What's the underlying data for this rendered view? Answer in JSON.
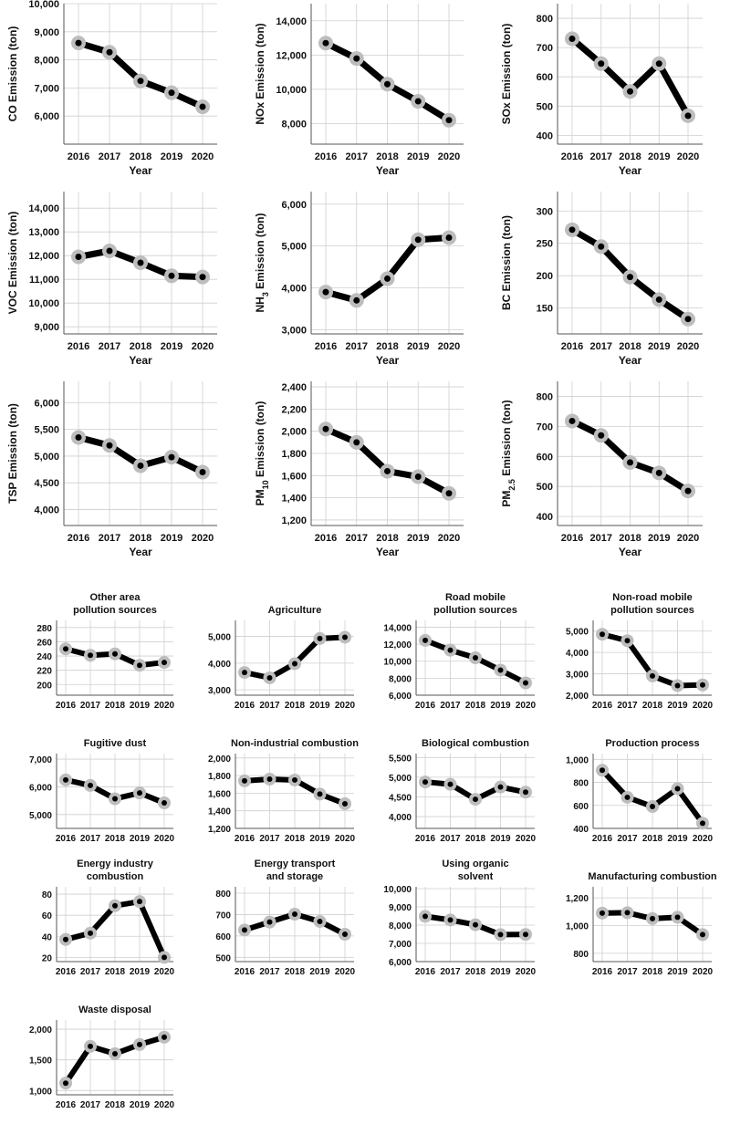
{
  "figure": {
    "colors": {
      "line": "#000000",
      "marker": "#bdbdbd",
      "grid": "#cfcfcf",
      "axis": "#555555"
    }
  },
  "chart_data": [
    {
      "type": "line",
      "ylabel": "CO Emission (ton)",
      "ylabel_sub": "",
      "ylabel_post": "",
      "xlabel": "Year",
      "categories": [
        "2016",
        "2017",
        "2018",
        "2019",
        "2020"
      ],
      "values": [
        8600,
        8270,
        7250,
        6830,
        6330
      ],
      "ylim": [
        5000,
        10000
      ],
      "yticks": [
        6000,
        7000,
        8000,
        9000,
        10000
      ],
      "ytick_labels": [
        "6,000",
        "7,000",
        "8,000",
        "9,000",
        "10,000"
      ]
    },
    {
      "type": "line",
      "ylabel": "NOx Emission (ton)",
      "ylabel_sub": "",
      "ylabel_post": "",
      "xlabel": "Year",
      "categories": [
        "2016",
        "2017",
        "2018",
        "2019",
        "2020"
      ],
      "values": [
        12700,
        11800,
        10300,
        9300,
        8200
      ],
      "ylim": [
        6800,
        15000
      ],
      "yticks": [
        8000,
        10000,
        12000,
        14000
      ],
      "ytick_labels": [
        "8,000",
        "10,000",
        "12,000",
        "14,000"
      ]
    },
    {
      "type": "line",
      "ylabel": "SOx Emission (ton)",
      "ylabel_sub": "",
      "ylabel_post": "",
      "xlabel": "Year",
      "categories": [
        "2016",
        "2017",
        "2018",
        "2019",
        "2020"
      ],
      "values": [
        730,
        645,
        550,
        645,
        467
      ],
      "ylim": [
        370,
        850
      ],
      "yticks": [
        400,
        500,
        600,
        700,
        800
      ],
      "ytick_labels": [
        "400",
        "500",
        "600",
        "700",
        "800"
      ]
    },
    {
      "type": "line",
      "ylabel": "VOC Emission (ton)",
      "ylabel_sub": "",
      "ylabel_post": "",
      "xlabel": "Year",
      "categories": [
        "2016",
        "2017",
        "2018",
        "2019",
        "2020"
      ],
      "values": [
        11950,
        12200,
        11700,
        11150,
        11100
      ],
      "ylim": [
        8700,
        14700
      ],
      "yticks": [
        9000,
        10000,
        11000,
        12000,
        13000,
        14000
      ],
      "ytick_labels": [
        "9,000",
        "10,000",
        "11,000",
        "12,000",
        "13,000",
        "14,000"
      ]
    },
    {
      "type": "line",
      "ylabel": "NH",
      "ylabel_sub": "3",
      "ylabel_post": " Emission (ton)",
      "xlabel": "Year",
      "categories": [
        "2016",
        "2017",
        "2018",
        "2019",
        "2020"
      ],
      "values": [
        3900,
        3700,
        4220,
        5150,
        5200
      ],
      "ylim": [
        2900,
        6300
      ],
      "yticks": [
        3000,
        4000,
        5000,
        6000
      ],
      "ytick_labels": [
        "3,000",
        "4,000",
        "5,000",
        "6,000"
      ]
    },
    {
      "type": "line",
      "ylabel": "BC Emission (ton)",
      "ylabel_sub": "",
      "ylabel_post": "",
      "xlabel": "Year",
      "categories": [
        "2016",
        "2017",
        "2018",
        "2019",
        "2020"
      ],
      "values": [
        271,
        245,
        198,
        163,
        133
      ],
      "ylim": [
        110,
        330
      ],
      "yticks": [
        150,
        200,
        250,
        300
      ],
      "ytick_labels": [
        "150",
        "200",
        "250",
        "300"
      ]
    },
    {
      "type": "line",
      "ylabel": "TSP Emission (ton)",
      "ylabel_sub": "",
      "ylabel_post": "",
      "xlabel": "Year",
      "categories": [
        "2016",
        "2017",
        "2018",
        "2019",
        "2020"
      ],
      "values": [
        5350,
        5200,
        4820,
        4980,
        4700
      ],
      "ylim": [
        3700,
        6400
      ],
      "yticks": [
        4000,
        4500,
        5000,
        5500,
        6000
      ],
      "ytick_labels": [
        "4,000",
        "4,500",
        "5,000",
        "5,500",
        "6,000"
      ]
    },
    {
      "type": "line",
      "ylabel": "PM",
      "ylabel_sub": "10",
      "ylabel_post": " Emission (ton)",
      "xlabel": "Year",
      "categories": [
        "2016",
        "2017",
        "2018",
        "2019",
        "2020"
      ],
      "values": [
        2020,
        1900,
        1640,
        1590,
        1440
      ],
      "ylim": [
        1150,
        2450
      ],
      "yticks": [
        1200,
        1400,
        1600,
        1800,
        2000,
        2200,
        2400
      ],
      "ytick_labels": [
        "1,200",
        "1,400",
        "1,600",
        "1,800",
        "2,000",
        "2,200",
        "2,400"
      ]
    },
    {
      "type": "line",
      "ylabel": "PM",
      "ylabel_sub": "2.5",
      "ylabel_post": " Emission (ton)",
      "xlabel": "Year",
      "categories": [
        "2016",
        "2017",
        "2018",
        "2019",
        "2020"
      ],
      "values": [
        718,
        670,
        580,
        545,
        485
      ],
      "ylim": [
        370,
        850
      ],
      "yticks": [
        400,
        500,
        600,
        700,
        800
      ],
      "ytick_labels": [
        "400",
        "500",
        "600",
        "700",
        "800"
      ]
    },
    {
      "type": "line",
      "title": [
        "Other area",
        "pollution sources"
      ],
      "categories": [
        "2016",
        "2017",
        "2018",
        "2019",
        "2020"
      ],
      "values": [
        250,
        241,
        243,
        227,
        231
      ],
      "ylim": [
        185,
        290
      ],
      "yticks": [
        200,
        220,
        240,
        260,
        280
      ],
      "ytick_labels": [
        "200",
        "220",
        "240",
        "260",
        "280"
      ]
    },
    {
      "type": "line",
      "title": [
        "Agriculture"
      ],
      "categories": [
        "2016",
        "2017",
        "2018",
        "2019",
        "2020"
      ],
      "values": [
        3650,
        3450,
        3980,
        4920,
        4970
      ],
      "ylim": [
        2800,
        5600
      ],
      "yticks": [
        3000,
        4000,
        5000
      ],
      "ytick_labels": [
        "3,000",
        "4,000",
        "5,000"
      ]
    },
    {
      "type": "line",
      "title": [
        "Road mobile",
        "pollution sources"
      ],
      "categories": [
        "2016",
        "2017",
        "2018",
        "2019",
        "2020"
      ],
      "values": [
        12450,
        11300,
        10400,
        8950,
        7450
      ],
      "ylim": [
        6000,
        14800
      ],
      "yticks": [
        6000,
        8000,
        10000,
        12000,
        14000
      ],
      "ytick_labels": [
        "6,000",
        "8,000",
        "10,000",
        "12,000",
        "14,000"
      ]
    },
    {
      "type": "line",
      "title": [
        "Non-road mobile",
        "pollution sources"
      ],
      "categories": [
        "2016",
        "2017",
        "2018",
        "2019",
        "2020"
      ],
      "values": [
        4850,
        4550,
        2900,
        2450,
        2480
      ],
      "ylim": [
        2000,
        5500
      ],
      "yticks": [
        2000,
        3000,
        4000,
        5000
      ],
      "ytick_labels": [
        "2,000",
        "3,000",
        "4,000",
        "5,000"
      ]
    },
    {
      "type": "line",
      "title": [
        "Fugitive dust"
      ],
      "categories": [
        "2016",
        "2017",
        "2018",
        "2019",
        "2020"
      ],
      "values": [
        6250,
        6050,
        5570,
        5780,
        5420
      ],
      "ylim": [
        4500,
        7200
      ],
      "yticks": [
        5000,
        6000,
        7000
      ],
      "ytick_labels": [
        "5,000",
        "6,000",
        "7,000"
      ]
    },
    {
      "type": "line",
      "title": [
        "Non-industrial combustion"
      ],
      "categories": [
        "2016",
        "2017",
        "2018",
        "2019",
        "2020"
      ],
      "values": [
        1740,
        1760,
        1750,
        1590,
        1480
      ],
      "ylim": [
        1200,
        2050
      ],
      "yticks": [
        1200,
        1400,
        1600,
        1800,
        2000
      ],
      "ytick_labels": [
        "1,200",
        "1,400",
        "1,600",
        "1,800",
        "2,000"
      ]
    },
    {
      "type": "line",
      "title": [
        "Biological combustion"
      ],
      "categories": [
        "2016",
        "2017",
        "2018",
        "2019",
        "2020"
      ],
      "values": [
        4880,
        4820,
        4440,
        4750,
        4620
      ],
      "ylim": [
        3700,
        5600
      ],
      "yticks": [
        4000,
        4500,
        5000,
        5500
      ],
      "ytick_labels": [
        "4,000",
        "4,500",
        "5,000",
        "5,500"
      ]
    },
    {
      "type": "line",
      "title": [
        "Production process"
      ],
      "categories": [
        "2016",
        "2017",
        "2018",
        "2019",
        "2020"
      ],
      "values": [
        905,
        670,
        590,
        745,
        445
      ],
      "ylim": [
        400,
        1050
      ],
      "yticks": [
        400,
        600,
        800,
        1000
      ],
      "ytick_labels": [
        "400",
        "600",
        "800",
        "1,000"
      ]
    },
    {
      "type": "line",
      "title": [
        "Energy industry",
        "combustion"
      ],
      "categories": [
        "2016",
        "2017",
        "2018",
        "2019",
        "2020"
      ],
      "values": [
        37,
        43,
        69,
        73,
        20
      ],
      "ylim": [
        16,
        87
      ],
      "yticks": [
        20,
        40,
        60,
        80
      ],
      "ytick_labels": [
        "20",
        "40",
        "60",
        "80"
      ]
    },
    {
      "type": "line",
      "title": [
        "Energy transport",
        "and storage"
      ],
      "categories": [
        "2016",
        "2017",
        "2018",
        "2019",
        "2020"
      ],
      "values": [
        628,
        665,
        702,
        668,
        608
      ],
      "ylim": [
        480,
        830
      ],
      "yticks": [
        500,
        600,
        700,
        800
      ],
      "ytick_labels": [
        "500",
        "600",
        "700",
        "800"
      ]
    },
    {
      "type": "line",
      "title": [
        "Using organic",
        "solvent"
      ],
      "categories": [
        "2016",
        "2017",
        "2018",
        "2019",
        "2020"
      ],
      "values": [
        8480,
        8280,
        8020,
        7480,
        7490
      ],
      "ylim": [
        6000,
        10100
      ],
      "yticks": [
        6000,
        7000,
        8000,
        9000,
        10000
      ],
      "ytick_labels": [
        "6,000",
        "7,000",
        "8,000",
        "9,000",
        "10,000"
      ]
    },
    {
      "type": "line",
      "title": [
        "Manufacturing combustion"
      ],
      "categories": [
        "2016",
        "2017",
        "2018",
        "2019",
        "2020"
      ],
      "values": [
        1090,
        1093,
        1050,
        1060,
        935
      ],
      "ylim": [
        740,
        1280
      ],
      "yticks": [
        800,
        1000,
        1200
      ],
      "ytick_labels": [
        "800",
        "1,000",
        "1,200"
      ]
    },
    {
      "type": "line",
      "title": [
        "Waste disposal"
      ],
      "categories": [
        "2016",
        "2017",
        "2018",
        "2019",
        "2020"
      ],
      "values": [
        1120,
        1720,
        1600,
        1750,
        1870
      ],
      "ylim": [
        930,
        2150
      ],
      "yticks": [
        1000,
        1500,
        2000
      ],
      "ytick_labels": [
        "1,000",
        "1,500",
        "2,000"
      ]
    }
  ]
}
